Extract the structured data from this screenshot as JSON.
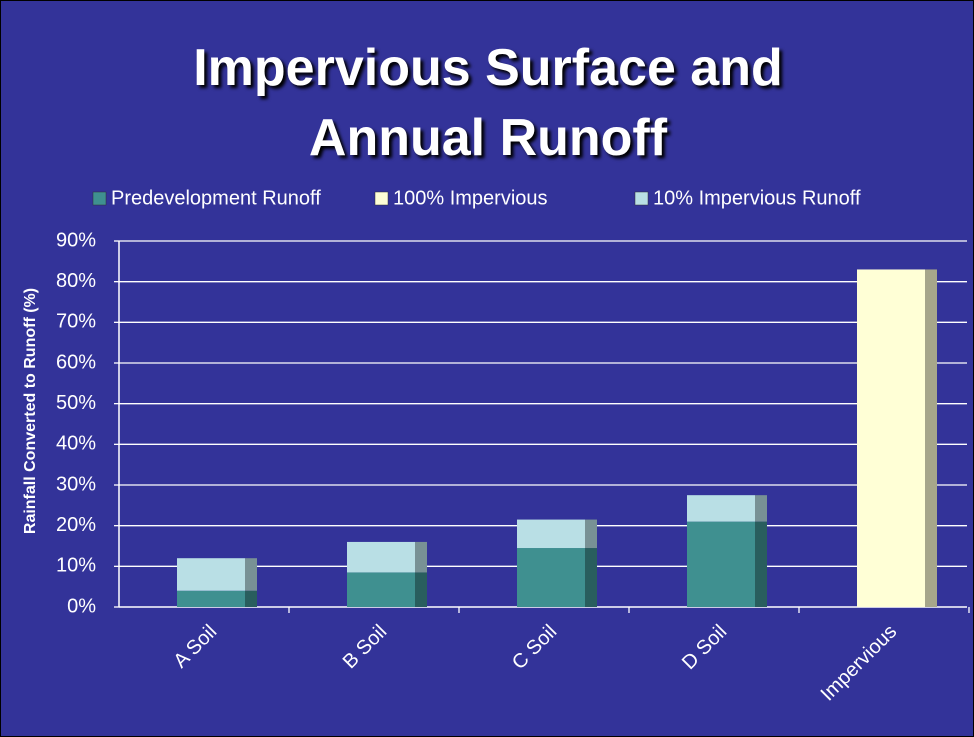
{
  "chart_data": {
    "type": "stacked_bar",
    "title": "Impervious Surface and Annual Runoff",
    "y_axis_label": "Rainfall Converted to Runoff (%)",
    "categories": [
      "A Soil",
      "B Soil",
      "C Soil",
      "D Soil",
      "Impervious"
    ],
    "series": [
      {
        "name": "Predevelopment Runoff",
        "color": "#3f9090",
        "values": [
          4,
          8.5,
          14.5,
          21,
          null
        ]
      },
      {
        "name": "100% Impervious",
        "color": "#ffffd6",
        "values": [
          null,
          null,
          null,
          null,
          83
        ]
      },
      {
        "name": "10% Impervious Runoff",
        "color": "#b9dfe5",
        "values": [
          8,
          7.5,
          7,
          6.5,
          null
        ]
      }
    ],
    "ylim": [
      0,
      90
    ],
    "yticks": [
      {
        "value": 0,
        "label": "0%"
      },
      {
        "value": 10,
        "label": "10%"
      },
      {
        "value": 20,
        "label": "20%"
      },
      {
        "value": 30,
        "label": "30%"
      },
      {
        "value": 40,
        "label": "40%"
      },
      {
        "value": 50,
        "label": "50%"
      },
      {
        "value": 60,
        "label": "60%"
      },
      {
        "value": 70,
        "label": "70%"
      },
      {
        "value": 80,
        "label": "80%"
      },
      {
        "value": 90,
        "label": "90%"
      }
    ],
    "grid": true,
    "legend": "top"
  }
}
